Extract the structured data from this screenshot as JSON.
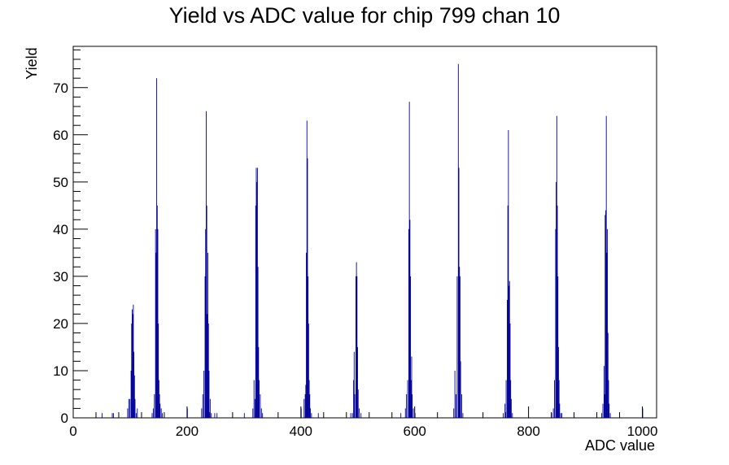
{
  "chart_data": {
    "type": "histogram",
    "title": "Yield vs ADC value for chip 799 chan 10",
    "xlabel": "ADC value",
    "ylabel": "Yield",
    "xlim": [
      0,
      1025
    ],
    "ylim": [
      0,
      78.75
    ],
    "x_ticks": [
      0,
      200,
      400,
      600,
      800,
      1000
    ],
    "y_ticks": [
      0,
      10,
      20,
      30,
      40,
      50,
      60,
      70
    ],
    "grid": false,
    "legend": "none",
    "line_color": "#000099",
    "bin_width": 1,
    "bins": [
      {
        "x": 50,
        "y": 1
      },
      {
        "x": 68,
        "y": 1
      },
      {
        "x": 70,
        "y": 1
      },
      {
        "x": 95,
        "y": 2
      },
      {
        "x": 97,
        "y": 4
      },
      {
        "x": 99,
        "y": 4
      },
      {
        "x": 101,
        "y": 10
      },
      {
        "x": 102,
        "y": 20
      },
      {
        "x": 103,
        "y": 23
      },
      {
        "x": 104,
        "y": 22
      },
      {
        "x": 105,
        "y": 24
      },
      {
        "x": 106,
        "y": 14
      },
      {
        "x": 107,
        "y": 9
      },
      {
        "x": 108,
        "y": 4
      },
      {
        "x": 110,
        "y": 1
      },
      {
        "x": 112,
        "y": 2
      },
      {
        "x": 138,
        "y": 1
      },
      {
        "x": 140,
        "y": 2
      },
      {
        "x": 142,
        "y": 5
      },
      {
        "x": 144,
        "y": 40
      },
      {
        "x": 145,
        "y": 35
      },
      {
        "x": 146,
        "y": 72
      },
      {
        "x": 147,
        "y": 45
      },
      {
        "x": 148,
        "y": 40
      },
      {
        "x": 149,
        "y": 20
      },
      {
        "x": 150,
        "y": 8
      },
      {
        "x": 151,
        "y": 5
      },
      {
        "x": 152,
        "y": 3
      },
      {
        "x": 154,
        "y": 2
      },
      {
        "x": 156,
        "y": 1
      },
      {
        "x": 200,
        "y": 2
      },
      {
        "x": 225,
        "y": 2
      },
      {
        "x": 227,
        "y": 5
      },
      {
        "x": 229,
        "y": 10
      },
      {
        "x": 231,
        "y": 30
      },
      {
        "x": 232,
        "y": 40
      },
      {
        "x": 233,
        "y": 65
      },
      {
        "x": 234,
        "y": 45
      },
      {
        "x": 235,
        "y": 22
      },
      {
        "x": 236,
        "y": 35
      },
      {
        "x": 237,
        "y": 20
      },
      {
        "x": 238,
        "y": 10
      },
      {
        "x": 240,
        "y": 4
      },
      {
        "x": 242,
        "y": 1
      },
      {
        "x": 248,
        "y": 1
      },
      {
        "x": 252,
        "y": 1
      },
      {
        "x": 300,
        "y": 1
      },
      {
        "x": 315,
        "y": 2
      },
      {
        "x": 317,
        "y": 8
      },
      {
        "x": 319,
        "y": 4
      },
      {
        "x": 320,
        "y": 45
      },
      {
        "x": 321,
        "y": 53
      },
      {
        "x": 322,
        "y": 50
      },
      {
        "x": 323,
        "y": 53
      },
      {
        "x": 324,
        "y": 32
      },
      {
        "x": 325,
        "y": 15
      },
      {
        "x": 326,
        "y": 8
      },
      {
        "x": 328,
        "y": 5
      },
      {
        "x": 330,
        "y": 2
      },
      {
        "x": 332,
        "y": 1
      },
      {
        "x": 400,
        "y": 2
      },
      {
        "x": 405,
        "y": 4
      },
      {
        "x": 407,
        "y": 5
      },
      {
        "x": 408,
        "y": 7
      },
      {
        "x": 409,
        "y": 35
      },
      {
        "x": 410,
        "y": 63
      },
      {
        "x": 411,
        "y": 55
      },
      {
        "x": 412,
        "y": 30
      },
      {
        "x": 413,
        "y": 20
      },
      {
        "x": 414,
        "y": 8
      },
      {
        "x": 415,
        "y": 5
      },
      {
        "x": 416,
        "y": 2
      },
      {
        "x": 418,
        "y": 1
      },
      {
        "x": 430,
        "y": 1
      },
      {
        "x": 487,
        "y": 1
      },
      {
        "x": 490,
        "y": 1
      },
      {
        "x": 492,
        "y": 8
      },
      {
        "x": 493,
        "y": 14
      },
      {
        "x": 494,
        "y": 5
      },
      {
        "x": 496,
        "y": 30
      },
      {
        "x": 497,
        "y": 33
      },
      {
        "x": 498,
        "y": 30
      },
      {
        "x": 499,
        "y": 15
      },
      {
        "x": 500,
        "y": 6
      },
      {
        "x": 502,
        "y": 2
      },
      {
        "x": 505,
        "y": 1
      },
      {
        "x": 575,
        "y": 1
      },
      {
        "x": 583,
        "y": 2
      },
      {
        "x": 585,
        "y": 5
      },
      {
        "x": 587,
        "y": 8
      },
      {
        "x": 589,
        "y": 40
      },
      {
        "x": 590,
        "y": 67
      },
      {
        "x": 591,
        "y": 42
      },
      {
        "x": 592,
        "y": 30
      },
      {
        "x": 593,
        "y": 8
      },
      {
        "x": 594,
        "y": 13
      },
      {
        "x": 595,
        "y": 5
      },
      {
        "x": 597,
        "y": 2
      },
      {
        "x": 600,
        "y": 1
      },
      {
        "x": 668,
        "y": 2
      },
      {
        "x": 670,
        "y": 10
      },
      {
        "x": 672,
        "y": 5
      },
      {
        "x": 674,
        "y": 30
      },
      {
        "x": 676,
        "y": 75
      },
      {
        "x": 677,
        "y": 53
      },
      {
        "x": 678,
        "y": 32
      },
      {
        "x": 679,
        "y": 30
      },
      {
        "x": 680,
        "y": 12
      },
      {
        "x": 682,
        "y": 5
      },
      {
        "x": 684,
        "y": 1
      },
      {
        "x": 755,
        "y": 1
      },
      {
        "x": 758,
        "y": 3
      },
      {
        "x": 760,
        "y": 8
      },
      {
        "x": 762,
        "y": 25
      },
      {
        "x": 763,
        "y": 45
      },
      {
        "x": 764,
        "y": 61
      },
      {
        "x": 765,
        "y": 28
      },
      {
        "x": 766,
        "y": 29
      },
      {
        "x": 767,
        "y": 20
      },
      {
        "x": 768,
        "y": 8
      },
      {
        "x": 769,
        "y": 4
      },
      {
        "x": 771,
        "y": 1
      },
      {
        "x": 840,
        "y": 1
      },
      {
        "x": 843,
        "y": 2
      },
      {
        "x": 845,
        "y": 8
      },
      {
        "x": 847,
        "y": 40
      },
      {
        "x": 848,
        "y": 50
      },
      {
        "x": 849,
        "y": 64
      },
      {
        "x": 850,
        "y": 45
      },
      {
        "x": 851,
        "y": 30
      },
      {
        "x": 852,
        "y": 15
      },
      {
        "x": 853,
        "y": 8
      },
      {
        "x": 854,
        "y": 3
      },
      {
        "x": 856,
        "y": 1
      },
      {
        "x": 858,
        "y": 1
      },
      {
        "x": 928,
        "y": 1
      },
      {
        "x": 930,
        "y": 3
      },
      {
        "x": 932,
        "y": 11
      },
      {
        "x": 933,
        "y": 5
      },
      {
        "x": 934,
        "y": 43
      },
      {
        "x": 935,
        "y": 44
      },
      {
        "x": 936,
        "y": 64
      },
      {
        "x": 937,
        "y": 35
      },
      {
        "x": 938,
        "y": 40
      },
      {
        "x": 939,
        "y": 18
      },
      {
        "x": 940,
        "y": 8
      },
      {
        "x": 941,
        "y": 3
      },
      {
        "x": 943,
        "y": 1
      },
      {
        "x": 1000,
        "y": 2
      }
    ]
  }
}
